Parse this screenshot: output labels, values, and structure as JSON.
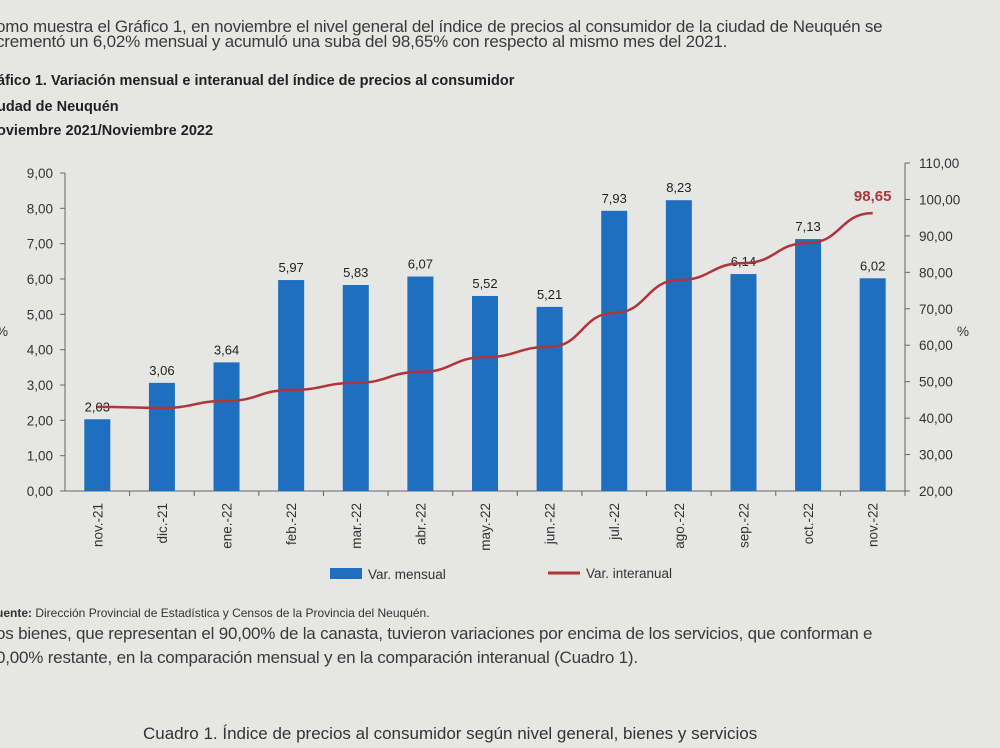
{
  "text": {
    "para1_line1": "omo muestra el Gráfico 1, en noviembre el nivel general del índice de precios al consumidor de la ciudad de Neuquén se",
    "para1_line2": "crementó un 6,02% mensual y acumuló una suba del 98,65% con respecto al mismo mes del 2021.",
    "source_label": "uente:",
    "source_text": "Dirección Provincial de Estadística y Censos de la Provincia del Neuquén.",
    "para2_line1": "os bienes, que representan el 90,00% de la canasta, tuvieron variaciones por encima de los servicios, que conforman e",
    "para2_line2": "0,00% restante, en la comparación mensual y en la comparación interanual (Cuadro 1).",
    "cuadro_title": "Cuadro 1. Índice de precios al consumidor según nivel general, bienes y servicios"
  },
  "chart_data": {
    "type": "bar+line",
    "title": "áfico 1. Variación mensual e interanual del índice de precios al consumidor",
    "subtitle1": "udad de Neuquén",
    "subtitle2": "oviembre 2021/Noviembre 2022",
    "categories": [
      "nov.-21",
      "dic.-21",
      "ene.-22",
      "feb.-22",
      "mar.-22",
      "abr.-22",
      "may.-22",
      "jun.-22",
      "jul.-22",
      "ago.-22",
      "sep.-22",
      "oct.-22",
      "nov.-22"
    ],
    "series": [
      {
        "name": "Var. mensual",
        "type": "bar",
        "axis": "left",
        "color": "#1f6fc0",
        "values": [
          2.03,
          3.06,
          3.64,
          5.97,
          5.83,
          6.07,
          5.52,
          5.21,
          7.93,
          8.23,
          6.14,
          7.13,
          6.02
        ],
        "labels": [
          "2,03",
          "3,06",
          "3,64",
          "5,97",
          "5,83",
          "6,07",
          "5,52",
          "5,21",
          "7,93",
          "8,23",
          "6,14",
          "7,13",
          "6,02"
        ]
      },
      {
        "name": "Var. interanual",
        "type": "line",
        "axis": "right",
        "color": "#b0353a",
        "values": [
          43.8,
          43.5,
          45.5,
          48.6,
          50.6,
          53.7,
          57.9,
          60.8,
          70.4,
          79.7,
          84.5,
          90.2,
          98.65
        ],
        "end_label": "98,65"
      }
    ],
    "left_axis": {
      "range": [
        0,
        9
      ],
      "ticks": [
        "0,00",
        "1,00",
        "2,00",
        "3,00",
        "4,00",
        "5,00",
        "6,00",
        "7,00",
        "8,00",
        "9,00"
      ],
      "label": "%"
    },
    "right_axis": {
      "range": [
        20,
        110
      ],
      "ticks": [
        "20,00",
        "30,00",
        "40,00",
        "50,00",
        "60,00",
        "70,00",
        "80,00",
        "90,00",
        "100,00",
        "110,00"
      ],
      "label": "%"
    },
    "grid": false,
    "legend": "bottom"
  }
}
